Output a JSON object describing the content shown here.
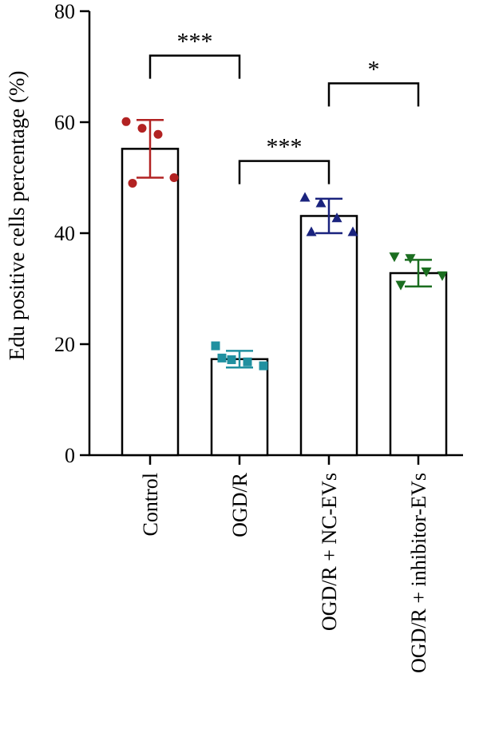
{
  "chart_data": {
    "type": "bar",
    "title": "",
    "xlabel": "",
    "ylabel": "Edu positive cells percentage (%)",
    "ylim": [
      0,
      80
    ],
    "yticks": [
      "0",
      "20",
      "40",
      "60",
      "80"
    ],
    "categories": [
      "Control",
      "OGD/R",
      "OGD/R + NC-EVs",
      "OGD/R + inhibitor-EVs"
    ],
    "values": [
      55.2,
      17.3,
      43.1,
      32.8
    ],
    "errors": [
      5.2,
      1.5,
      3.1,
      2.4
    ],
    "points": [
      [
        60.1,
        58.9,
        57.8,
        50.0,
        49.0
      ],
      [
        19.7,
        17.2,
        16.8,
        16.1,
        17.5
      ],
      [
        46.4,
        45.4,
        42.7,
        40.2,
        40.2
      ],
      [
        35.8,
        35.5,
        33.1,
        32.4,
        30.7
      ]
    ],
    "markers": [
      "circle",
      "square",
      "triangle-up",
      "triangle-down"
    ],
    "colors": [
      "#b22222",
      "#2090a0",
      "#1a237e",
      "#1b6e20"
    ],
    "comparisons": [
      {
        "from": 0,
        "to": 1,
        "level": 72,
        "label": "***"
      },
      {
        "from": 1,
        "to": 2,
        "level": 53,
        "label": "***"
      },
      {
        "from": 2,
        "to": 3,
        "level": 67,
        "label": "*"
      }
    ]
  }
}
